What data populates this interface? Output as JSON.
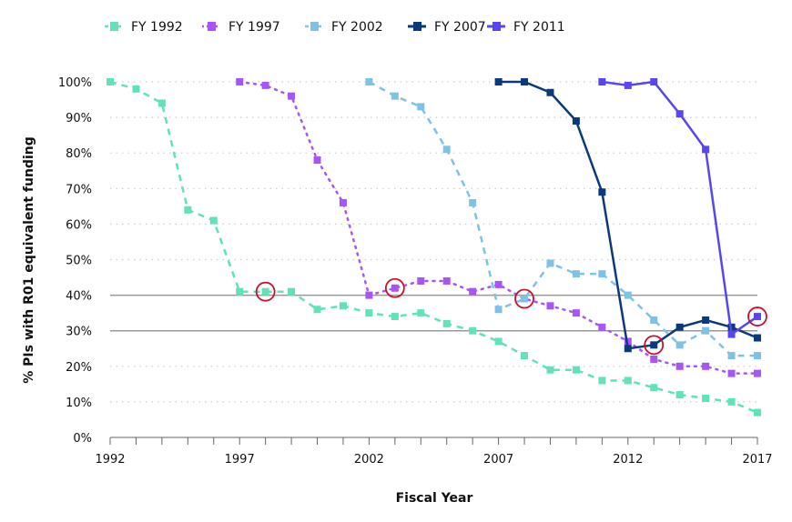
{
  "chart_data": {
    "type": "line",
    "title": "",
    "xlabel": "Fiscal Year",
    "ylabel": "% PIs with R01 equivalent funding",
    "xlim": [
      1992,
      2017
    ],
    "ylim": [
      0,
      100
    ],
    "x_ticks": [
      1992,
      1997,
      2002,
      2007,
      2012,
      2017
    ],
    "y_ticks": [
      "0%",
      "10%",
      "20%",
      "30%",
      "40%",
      "50%",
      "60%",
      "70%",
      "80%",
      "90%",
      "100%"
    ],
    "grid": "horizontal; solid at 30% and 40%, dotted elsewhere",
    "legend_placement": "top",
    "series": [
      {
        "name": "FY 1992",
        "color": "#5fe3b7",
        "style": "dashed",
        "x": [
          1992,
          1993,
          1994,
          1995,
          1996,
          1997,
          1998,
          1999,
          2000,
          2001,
          2002,
          2003,
          2004,
          2005,
          2006,
          2007,
          2008,
          2009,
          2010,
          2011,
          2012,
          2013,
          2014,
          2015,
          2016,
          2017
        ],
        "y": [
          100,
          98,
          94,
          64,
          61,
          41,
          41,
          41,
          36,
          37,
          35,
          34,
          35,
          32,
          30,
          27,
          23,
          19,
          19,
          16,
          16,
          14,
          12,
          11,
          10,
          7
        ]
      },
      {
        "name": "FY 1997",
        "color": "#a855f7",
        "style": "dotted",
        "x": [
          1997,
          1998,
          1999,
          2000,
          2001,
          2002,
          2003,
          2004,
          2005,
          2006,
          2007,
          2008,
          2009,
          2010,
          2011,
          2012,
          2013,
          2014,
          2015,
          2016,
          2017
        ],
        "y": [
          100,
          99,
          96,
          78,
          66,
          40,
          42,
          44,
          44,
          41,
          43,
          39,
          37,
          35,
          31,
          27,
          22,
          20,
          20,
          18,
          18
        ]
      },
      {
        "name": "FY 2002",
        "color": "#7ec3e3",
        "style": "dashed",
        "x": [
          2002,
          2003,
          2004,
          2005,
          2006,
          2007,
          2008,
          2009,
          2010,
          2011,
          2012,
          2013,
          2014,
          2015,
          2016,
          2017
        ],
        "y": [
          100,
          96,
          93,
          81,
          66,
          36,
          39,
          49,
          46,
          46,
          40,
          33,
          26,
          30,
          23,
          23
        ]
      },
      {
        "name": "FY 2007",
        "color": "#0b3a7c",
        "style": "solid",
        "x": [
          2007,
          2008,
          2009,
          2010,
          2011,
          2012,
          2013,
          2014,
          2015,
          2016,
          2017
        ],
        "y": [
          100,
          100,
          97,
          89,
          69,
          25,
          26,
          31,
          33,
          31,
          28
        ]
      },
      {
        "name": "FY 2011",
        "color": "#5846f2",
        "style": "solid",
        "x": [
          2011,
          2012,
          2013,
          2014,
          2015,
          2016,
          2017
        ],
        "y": [
          100,
          99,
          100,
          91,
          81,
          29,
          34
        ]
      }
    ],
    "highlight_circles": {
      "color": "#c8102e",
      "points": [
        [
          1998,
          41
        ],
        [
          2003,
          42
        ],
        [
          2008,
          39
        ],
        [
          2013,
          26
        ],
        [
          2017,
          34
        ]
      ]
    }
  }
}
